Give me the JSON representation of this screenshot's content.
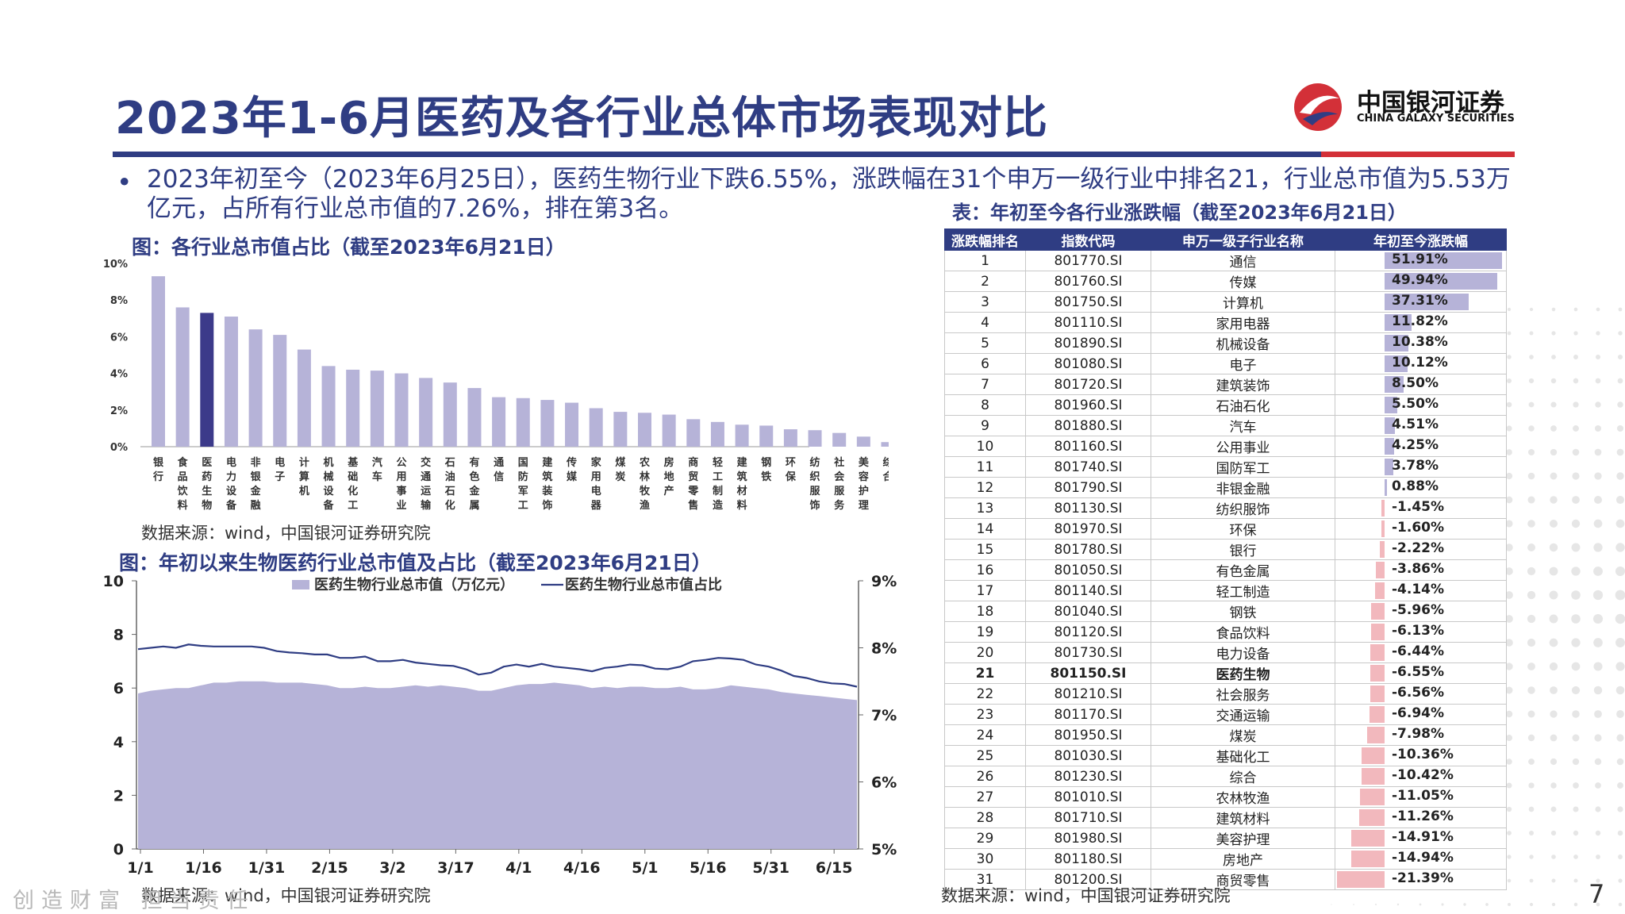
{
  "header": {
    "title": "2023年1-6月医药及各行业总体市场表现对比",
    "logo_cn": "中国银河证券",
    "logo_en": "CHINA GALAXY SECURITIES"
  },
  "summary": "2023年初至今（2023年6月25日），医药生物行业下跌6.55%，涨跌幅在31个申万一级行业中排名21，行业总市值为5.53万亿元，占所有行业总市值的7.26%，排在第3名。",
  "chart1_title": "图：各行业总市值占比（截至2023年6月21日）",
  "chart1_source": "数据来源：wind，中国银河证券研究院",
  "chart2_title": "图：年初以来生物医药行业总市值及占比（截至2023年6月21日）",
  "chart2_source": "数据来源：wind，中国银河证券研究院",
  "table_title": "表：年初至今各行业涨跌幅（截至2023年6月21日）",
  "table_source": "数据来源：wind，中国银河证券研究院",
  "footer": {
    "slogan": "创造财富 担当责任",
    "page": "7"
  },
  "colors": {
    "brand_blue": "#2f3d83",
    "accent_red": "#d33038",
    "bar_light": "#b6b3d8",
    "bar_highlight": "#3c3a8a",
    "neg_bar": "#f2b8bd"
  },
  "chart_data": [
    {
      "type": "bar",
      "categories": [
        "银行",
        "食品饮料",
        "医药生物",
        "电力设备",
        "非银金融",
        "电子",
        "计算机",
        "机械设备",
        "基础化工",
        "汽车",
        "公用事业",
        "交通运输",
        "石油石化",
        "有色金属",
        "通信",
        "国防军工",
        "建筑装饰",
        "传媒",
        "家用电器",
        "煤炭",
        "农林牧渔",
        "房地产",
        "商贸零售",
        "轻工制造",
        "建筑材料",
        "钢铁",
        "环保",
        "纺织服饰",
        "社会服务",
        "美容护理",
        "综合"
      ],
      "values": [
        9.3,
        7.6,
        7.3,
        7.1,
        6.4,
        6.1,
        5.3,
        4.4,
        4.2,
        4.15,
        4.0,
        3.75,
        3.5,
        3.2,
        2.7,
        2.65,
        2.55,
        2.4,
        2.1,
        1.9,
        1.85,
        1.75,
        1.5,
        1.35,
        1.2,
        1.15,
        0.95,
        0.9,
        0.75,
        0.55,
        0.25
      ],
      "highlight": "医药生物",
      "yticks": [
        "0%",
        "2%",
        "4%",
        "6%",
        "8%",
        "10%"
      ],
      "ylim": [
        0,
        10
      ]
    },
    {
      "type": "area+line",
      "legend": [
        "医药生物行业总市值（万亿元）",
        "医药生物行业总市值占比"
      ],
      "xticks": [
        "1/1",
        "1/16",
        "1/31",
        "2/15",
        "3/2",
        "3/17",
        "4/1",
        "4/16",
        "5/1",
        "5/16",
        "5/31",
        "6/15"
      ],
      "y_left_ticks": [
        "0",
        "2",
        "4",
        "6",
        "8",
        "10"
      ],
      "y_left_lim": [
        0,
        10
      ],
      "y_right_ticks": [
        "5%",
        "6%",
        "7%",
        "8%",
        "9%"
      ],
      "y_right_lim": [
        5,
        9
      ],
      "x": [
        0,
        3,
        6,
        9,
        12,
        15,
        18,
        21,
        24,
        27,
        30,
        33,
        36,
        39,
        42,
        45,
        48,
        51,
        54,
        57,
        60,
        63,
        66,
        69,
        72,
        75,
        78,
        81,
        84,
        87,
        90,
        93,
        96,
        99,
        102,
        105,
        108,
        111,
        114,
        117,
        120,
        123,
        126,
        129,
        132,
        135,
        138,
        141,
        144,
        147,
        150,
        153,
        156,
        159,
        162,
        165,
        168,
        171
      ],
      "market_cap": [
        5.8,
        5.9,
        5.95,
        6.0,
        6.0,
        6.1,
        6.2,
        6.2,
        6.25,
        6.25,
        6.25,
        6.2,
        6.2,
        6.2,
        6.15,
        6.1,
        6.0,
        6.0,
        6.05,
        6.0,
        6.0,
        6.05,
        6.1,
        6.05,
        6.1,
        6.05,
        6.0,
        5.9,
        5.9,
        6.0,
        6.1,
        6.15,
        6.15,
        6.2,
        6.15,
        6.1,
        6.0,
        6.05,
        6.0,
        6.05,
        6.05,
        6.0,
        6.0,
        6.05,
        5.95,
        5.95,
        6.0,
        6.1,
        6.05,
        6.0,
        5.95,
        5.85,
        5.8,
        5.75,
        5.7,
        5.65,
        5.6,
        5.55
      ],
      "share_pct": [
        7.98,
        8.0,
        8.02,
        8.0,
        8.05,
        8.03,
        8.02,
        8.02,
        8.02,
        8.02,
        8.0,
        7.95,
        7.93,
        7.92,
        7.9,
        7.9,
        7.85,
        7.85,
        7.87,
        7.8,
        7.8,
        7.82,
        7.78,
        7.76,
        7.74,
        7.73,
        7.68,
        7.6,
        7.63,
        7.72,
        7.75,
        7.72,
        7.76,
        7.72,
        7.7,
        7.68,
        7.65,
        7.7,
        7.72,
        7.75,
        7.74,
        7.69,
        7.68,
        7.72,
        7.8,
        7.82,
        7.85,
        7.84,
        7.82,
        7.75,
        7.72,
        7.66,
        7.58,
        7.55,
        7.5,
        7.47,
        7.46,
        7.42
      ]
    },
    {
      "type": "table",
      "columns": [
        "涨跌幅排名",
        "指数代码",
        "申万一级子行业名称",
        "年初至今涨跌幅"
      ],
      "highlight_rank": 21,
      "rows": [
        {
          "rank": "1",
          "code": "801770.SI",
          "name": "通信",
          "chg": "51.91%",
          "value": 51.91
        },
        {
          "rank": "2",
          "code": "801760.SI",
          "name": "传媒",
          "chg": "49.94%",
          "value": 49.94
        },
        {
          "rank": "3",
          "code": "801750.SI",
          "name": "计算机",
          "chg": "37.31%",
          "value": 37.31
        },
        {
          "rank": "4",
          "code": "801110.SI",
          "name": "家用电器",
          "chg": "11.82%",
          "value": 11.82
        },
        {
          "rank": "5",
          "code": "801890.SI",
          "name": "机械设备",
          "chg": "10.38%",
          "value": 10.38
        },
        {
          "rank": "6",
          "code": "801080.SI",
          "name": "电子",
          "chg": "10.12%",
          "value": 10.12
        },
        {
          "rank": "7",
          "code": "801720.SI",
          "name": "建筑装饰",
          "chg": "8.50%",
          "value": 8.5
        },
        {
          "rank": "8",
          "code": "801960.SI",
          "name": "石油石化",
          "chg": "5.50%",
          "value": 5.5
        },
        {
          "rank": "9",
          "code": "801880.SI",
          "name": "汽车",
          "chg": "4.51%",
          "value": 4.51
        },
        {
          "rank": "10",
          "code": "801160.SI",
          "name": "公用事业",
          "chg": "4.25%",
          "value": 4.25
        },
        {
          "rank": "11",
          "code": "801740.SI",
          "name": "国防军工",
          "chg": "3.78%",
          "value": 3.78
        },
        {
          "rank": "12",
          "code": "801790.SI",
          "name": "非银金融",
          "chg": "0.88%",
          "value": 0.88
        },
        {
          "rank": "13",
          "code": "801130.SI",
          "name": "纺织服饰",
          "chg": "-1.45%",
          "value": -1.45
        },
        {
          "rank": "14",
          "code": "801970.SI",
          "name": "环保",
          "chg": "-1.60%",
          "value": -1.6
        },
        {
          "rank": "15",
          "code": "801780.SI",
          "name": "银行",
          "chg": "-2.22%",
          "value": -2.22
        },
        {
          "rank": "16",
          "code": "801050.SI",
          "name": "有色金属",
          "chg": "-3.86%",
          "value": -3.86
        },
        {
          "rank": "17",
          "code": "801140.SI",
          "name": "轻工制造",
          "chg": "-4.14%",
          "value": -4.14
        },
        {
          "rank": "18",
          "code": "801040.SI",
          "name": "钢铁",
          "chg": "-5.96%",
          "value": -5.96
        },
        {
          "rank": "19",
          "code": "801120.SI",
          "name": "食品饮料",
          "chg": "-6.13%",
          "value": -6.13
        },
        {
          "rank": "20",
          "code": "801730.SI",
          "name": "电力设备",
          "chg": "-6.44%",
          "value": -6.44
        },
        {
          "rank": "21",
          "code": "801150.SI",
          "name": "医药生物",
          "chg": "-6.55%",
          "value": -6.55
        },
        {
          "rank": "22",
          "code": "801210.SI",
          "name": "社会服务",
          "chg": "-6.56%",
          "value": -6.56
        },
        {
          "rank": "23",
          "code": "801170.SI",
          "name": "交通运输",
          "chg": "-6.94%",
          "value": -6.94
        },
        {
          "rank": "24",
          "code": "801950.SI",
          "name": "煤炭",
          "chg": "-7.98%",
          "value": -7.98
        },
        {
          "rank": "25",
          "code": "801030.SI",
          "name": "基础化工",
          "chg": "-10.36%",
          "value": -10.36
        },
        {
          "rank": "26",
          "code": "801230.SI",
          "name": "综合",
          "chg": "-10.42%",
          "value": -10.42
        },
        {
          "rank": "27",
          "code": "801010.SI",
          "name": "农林牧渔",
          "chg": "-11.05%",
          "value": -11.05
        },
        {
          "rank": "28",
          "code": "801710.SI",
          "name": "建筑材料",
          "chg": "-11.26%",
          "value": -11.26
        },
        {
          "rank": "29",
          "code": "801980.SI",
          "name": "美容护理",
          "chg": "-14.91%",
          "value": -14.91
        },
        {
          "rank": "30",
          "code": "801180.SI",
          "name": "房地产",
          "chg": "-14.94%",
          "value": -14.94
        },
        {
          "rank": "31",
          "code": "801200.SI",
          "name": "商贸零售",
          "chg": "-21.39%",
          "value": -21.39
        }
      ]
    }
  ]
}
